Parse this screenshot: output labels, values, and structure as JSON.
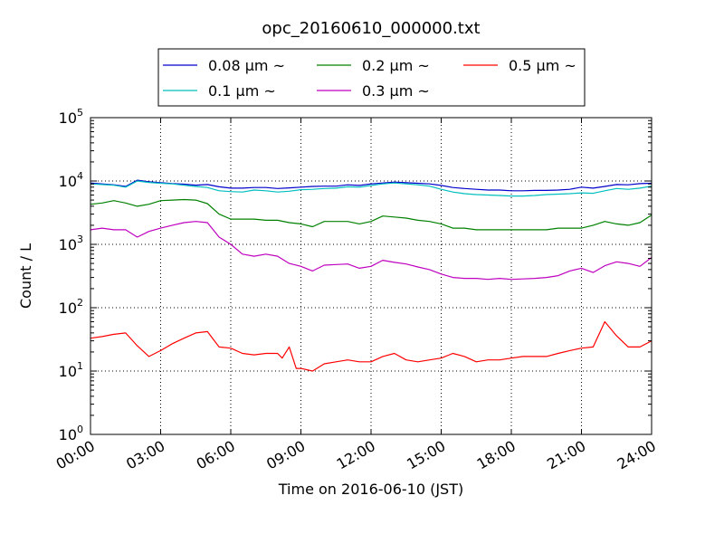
{
  "chart_data": {
    "type": "line",
    "title": "opc_20160610_000000.txt",
    "xlabel": "Time on 2016-06-10 (JST)",
    "ylabel": "Count / L",
    "x_unit": "hours",
    "xlim": [
      0,
      24
    ],
    "ylim": [
      1,
      100000
    ],
    "y_scale": "log",
    "grid": true,
    "legend_position": "top-center",
    "x_ticks": [
      {
        "value": 0,
        "label": "00:00"
      },
      {
        "value": 3,
        "label": "03:00"
      },
      {
        "value": 6,
        "label": "06:00"
      },
      {
        "value": 9,
        "label": "09:00"
      },
      {
        "value": 12,
        "label": "12:00"
      },
      {
        "value": 15,
        "label": "15:00"
      },
      {
        "value": 18,
        "label": "18:00"
      },
      {
        "value": 21,
        "label": "21:00"
      },
      {
        "value": 24,
        "label": "24:00"
      }
    ],
    "y_ticks": [
      {
        "value": 1,
        "base": "10",
        "exp": "0"
      },
      {
        "value": 10,
        "base": "10",
        "exp": "1"
      },
      {
        "value": 100,
        "base": "10",
        "exp": "2"
      },
      {
        "value": 1000,
        "base": "10",
        "exp": "3"
      },
      {
        "value": 10000,
        "base": "10",
        "exp": "4"
      },
      {
        "value": 100000,
        "base": "10",
        "exp": "5"
      }
    ],
    "series": [
      {
        "name": "0.08 μm ~",
        "color": "#0000cc",
        "x": [
          0,
          0.5,
          1,
          1.5,
          2,
          2.5,
          3,
          3.5,
          4,
          4.5,
          5,
          5.5,
          6,
          6.5,
          7,
          7.5,
          8,
          8.5,
          9,
          9.5,
          10,
          10.5,
          11,
          11.5,
          12,
          12.5,
          13,
          13.5,
          14,
          14.5,
          15,
          15.5,
          16,
          16.5,
          17,
          17.5,
          18,
          18.5,
          19,
          19.5,
          20,
          20.5,
          21,
          21.5,
          22,
          22.5,
          23,
          23.5,
          24
        ],
        "y": [
          9300,
          9000,
          8700,
          8200,
          10300,
          9700,
          9400,
          9100,
          8900,
          8600,
          8800,
          8100,
          7700,
          7700,
          7900,
          7900,
          7600,
          7800,
          8000,
          8200,
          8300,
          8300,
          8700,
          8500,
          9000,
          9300,
          9600,
          9400,
          9200,
          9000,
          8500,
          7900,
          7600,
          7400,
          7200,
          7200,
          7000,
          7000,
          7100,
          7100,
          7200,
          7400,
          8000,
          7700,
          8200,
          8800,
          8700,
          9100,
          9200
        ]
      },
      {
        "name": "0.1 μm ~",
        "color": "#00bfbf",
        "x": [
          0,
          0.5,
          1,
          1.5,
          2,
          2.5,
          3,
          3.5,
          4,
          4.5,
          5,
          5.5,
          6,
          6.5,
          7,
          7.5,
          8,
          8.5,
          9,
          9.5,
          10,
          10.5,
          11,
          11.5,
          12,
          12.5,
          13,
          13.5,
          14,
          14.5,
          15,
          15.5,
          16,
          16.5,
          17,
          17.5,
          18,
          18.5,
          19,
          19.5,
          20,
          20.5,
          21,
          21.5,
          22,
          22.5,
          23,
          23.5,
          24
        ],
        "y": [
          9000,
          8800,
          8600,
          8000,
          10000,
          9500,
          9200,
          9000,
          8600,
          8200,
          7900,
          7000,
          6800,
          6700,
          7200,
          7000,
          6700,
          6900,
          7300,
          7400,
          7600,
          7700,
          8100,
          8000,
          8500,
          9000,
          9300,
          9000,
          8700,
          8300,
          7400,
          6700,
          6300,
          6100,
          6000,
          5900,
          5800,
          5800,
          5900,
          6100,
          6200,
          6300,
          6500,
          6400,
          7000,
          7600,
          7400,
          7700,
          8300
        ]
      },
      {
        "name": "0.2 μm ~",
        "color": "#008000",
        "x": [
          0,
          0.5,
          1,
          1.5,
          2,
          2.5,
          3,
          3.5,
          4,
          4.5,
          5,
          5.5,
          6,
          6.5,
          7,
          7.5,
          8,
          8.5,
          9,
          9.5,
          10,
          10.5,
          11,
          11.5,
          12,
          12.5,
          13,
          13.5,
          14,
          14.5,
          15,
          15.5,
          16,
          16.5,
          17,
          17.5,
          18,
          18.5,
          19,
          19.5,
          20,
          20.5,
          21,
          21.5,
          22,
          22.5,
          23,
          23.5,
          24
        ],
        "y": [
          4300,
          4500,
          4900,
          4500,
          4000,
          4300,
          4900,
          5000,
          5100,
          5000,
          4400,
          3000,
          2500,
          2500,
          2500,
          2400,
          2400,
          2200,
          2100,
          1900,
          2300,
          2300,
          2300,
          2100,
          2300,
          2800,
          2700,
          2600,
          2400,
          2300,
          2100,
          1800,
          1800,
          1700,
          1700,
          1700,
          1700,
          1700,
          1700,
          1700,
          1800,
          1800,
          1800,
          2000,
          2300,
          2100,
          2000,
          2200,
          2900
        ]
      },
      {
        "name": "0.3 μm ~",
        "color": "#bf00bf",
        "x": [
          0,
          0.5,
          1,
          1.5,
          2,
          2.5,
          3,
          3.5,
          4,
          4.5,
          5,
          5.5,
          6,
          6.5,
          7,
          7.5,
          8,
          8.5,
          9,
          9.5,
          10,
          10.5,
          11,
          11.5,
          12,
          12.5,
          13,
          13.5,
          14,
          14.5,
          15,
          15.5,
          16,
          16.5,
          17,
          17.5,
          18,
          18.5,
          19,
          19.5,
          20,
          20.5,
          21,
          21.5,
          22,
          22.5,
          23,
          23.5,
          24
        ],
        "y": [
          1700,
          1800,
          1700,
          1700,
          1300,
          1600,
          1800,
          2000,
          2200,
          2300,
          2200,
          1300,
          1000,
          700,
          650,
          700,
          650,
          500,
          450,
          380,
          470,
          480,
          490,
          420,
          450,
          560,
          520,
          490,
          440,
          400,
          340,
          300,
          290,
          290,
          280,
          290,
          280,
          285,
          290,
          300,
          320,
          380,
          420,
          360,
          460,
          530,
          500,
          450,
          620
        ]
      },
      {
        "name": "0.5 μm ~",
        "color": "#ff0000",
        "x": [
          0,
          0.5,
          1,
          1.5,
          2,
          2.5,
          3,
          3.5,
          4,
          4.5,
          5,
          5.5,
          6,
          6.5,
          7,
          7.5,
          8,
          8.2,
          8.5,
          8.8,
          9,
          9.5,
          10,
          10.5,
          11,
          11.5,
          12,
          12.5,
          13,
          13.5,
          14,
          14.5,
          15,
          15.5,
          16,
          16.5,
          17,
          17.5,
          18,
          18.5,
          19,
          19.5,
          20,
          20.5,
          21,
          21.5,
          22,
          22.5,
          23,
          23.5,
          24
        ],
        "y": [
          33,
          35,
          38,
          40,
          25,
          17,
          21,
          27,
          33,
          40,
          42,
          24,
          23,
          19,
          18,
          19,
          19,
          16,
          24,
          11,
          11,
          10,
          13,
          14,
          15,
          14,
          14,
          17,
          19,
          15,
          14,
          15,
          16,
          19,
          17,
          14,
          15,
          15,
          16,
          17,
          17,
          17,
          19,
          21,
          23,
          24,
          60,
          36,
          24,
          24,
          30
        ]
      }
    ]
  }
}
